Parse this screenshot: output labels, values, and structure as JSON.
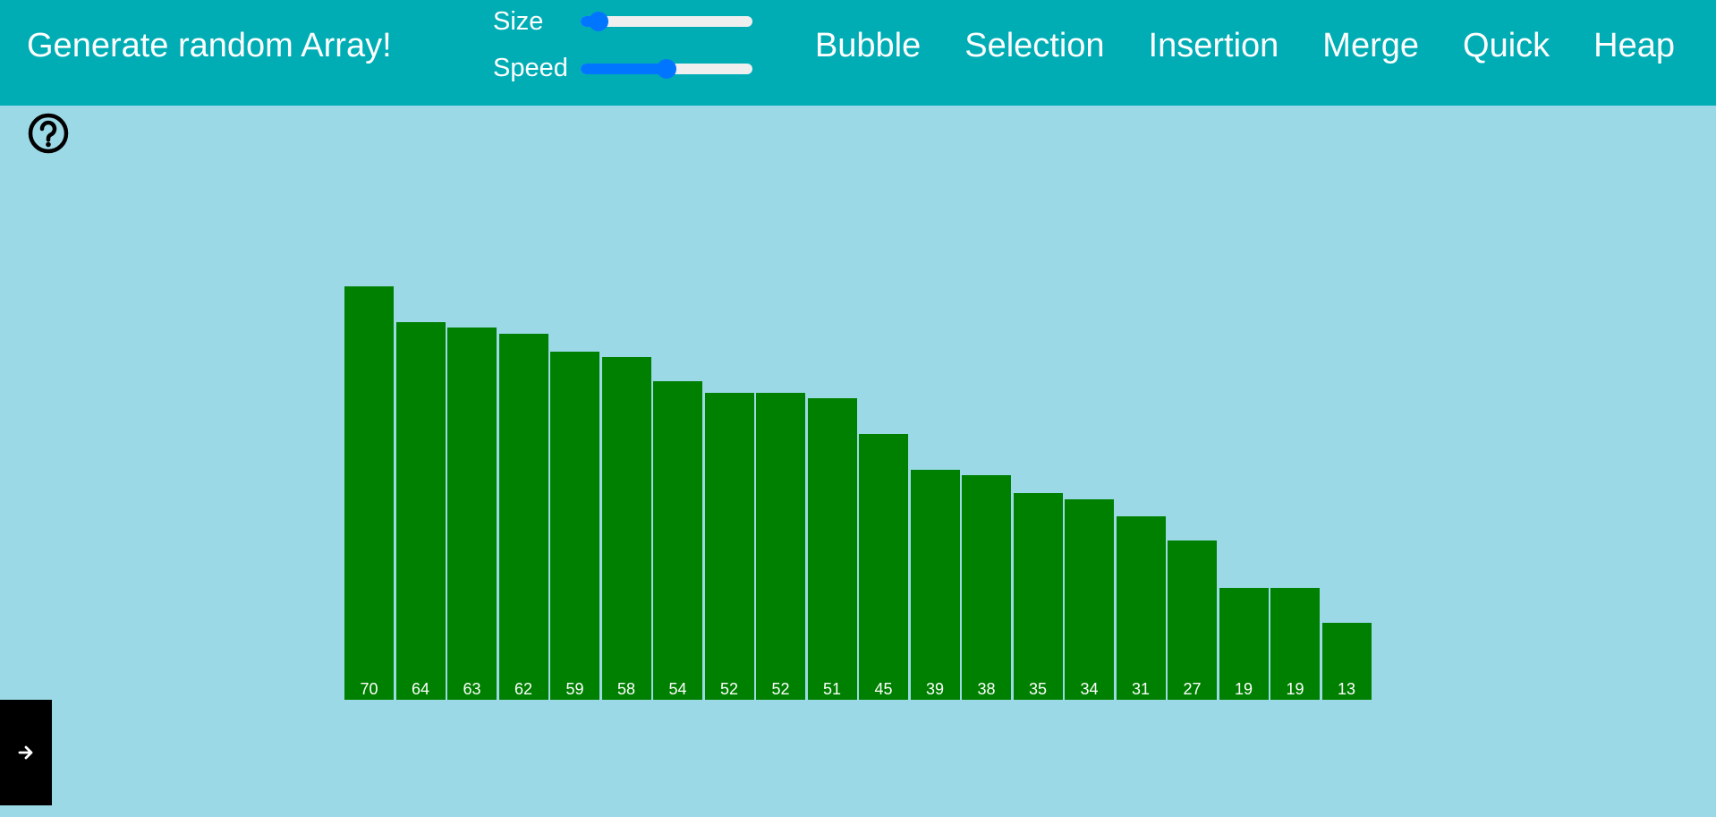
{
  "header": {
    "generate_label": "Generate random Array!",
    "size_label": "Size",
    "speed_label": "Speed",
    "size_value_fraction": 0.05,
    "speed_value_fraction": 0.5,
    "slider_accent": "#0075ff"
  },
  "nav": {
    "items": [
      {
        "label": "Bubble"
      },
      {
        "label": "Selection"
      },
      {
        "label": "Insertion"
      },
      {
        "label": "Merge"
      },
      {
        "label": "Quick"
      },
      {
        "label": "Heap"
      }
    ]
  },
  "colors": {
    "header_bg": "#00adb5",
    "page_bg": "#9bd9e6",
    "bar_color": "#008000"
  },
  "icons": {
    "help": "question-circle-icon",
    "side": "arrow-right-icon"
  },
  "chart_data": {
    "type": "bar",
    "values": [
      70,
      64,
      63,
      62,
      59,
      58,
      54,
      52,
      52,
      51,
      45,
      39,
      38,
      35,
      34,
      31,
      27,
      19,
      19,
      13
    ]
  }
}
